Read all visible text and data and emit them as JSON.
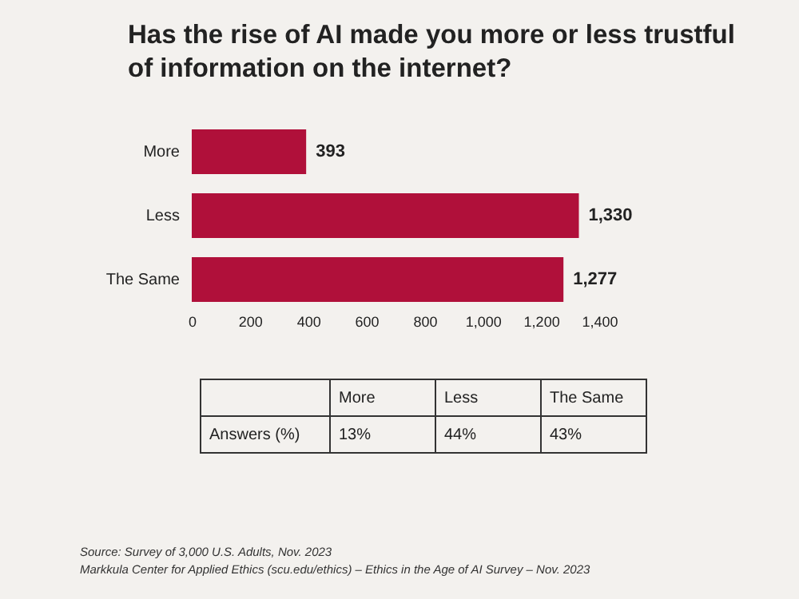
{
  "chart_data": [
    {
      "type": "bar",
      "orientation": "horizontal",
      "title": "Has the rise of AI made you more or less trustful of information on the internet?",
      "categories": [
        "More",
        "Less",
        "The Same"
      ],
      "values": [
        393,
        1330,
        1277
      ],
      "value_labels": [
        "393",
        "1,330",
        "1,277"
      ],
      "color": "#b0103a",
      "xlim": [
        0,
        1400
      ],
      "xticks": [
        0,
        200,
        400,
        600,
        800,
        {
          "value": 1000,
          "label": "1,000"
        },
        {
          "value": 1200,
          "label": "1,200"
        },
        {
          "value": 1400,
          "label": "1,400"
        }
      ],
      "annotations": [
        "Source: Survey of 3,000 U.S. Adults, Nov. 2023",
        "Markkula Center for Applied Ethics  (scu.edu/ethics) –  Ethics in the Age of AI Survey – Nov. 2023"
      ]
    },
    {
      "type": "other",
      "categories": [
        "More",
        "Less",
        "The Same"
      ],
      "ylabel": "Answers (%)",
      "value_labels": [
        "13%",
        "44%",
        "43%"
      ]
    }
  ]
}
